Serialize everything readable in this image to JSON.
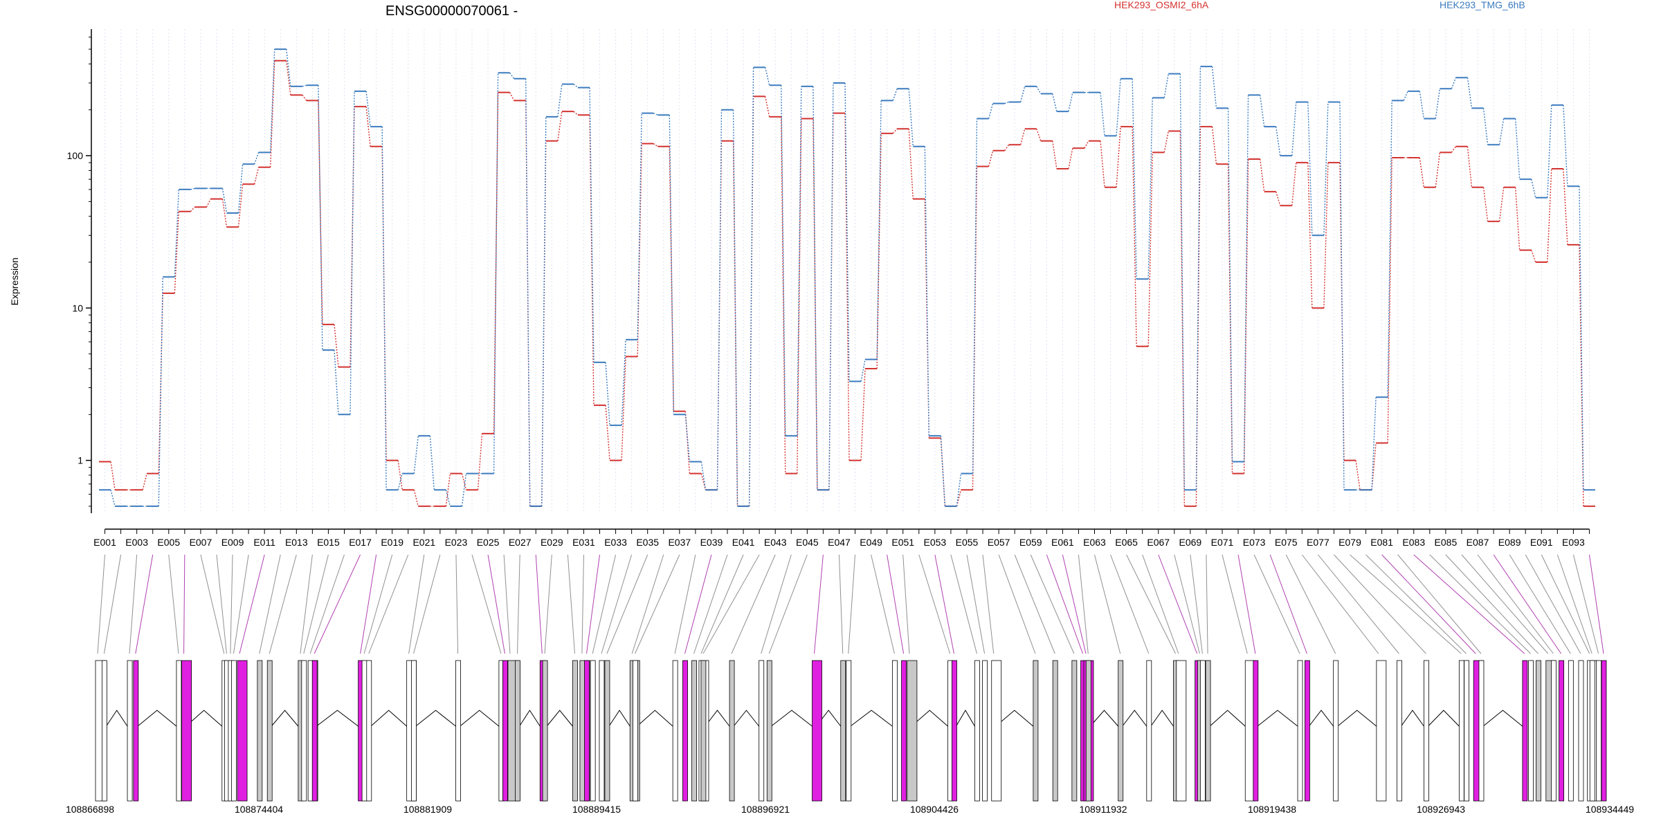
{
  "chart_data": {
    "type": "line",
    "title": "ENSG00000070061 -",
    "ylabel": "Expression",
    "xlabel": "",
    "y_scale": "log",
    "ylim": [
      0.45,
      650
    ],
    "y_ticks": [
      "1",
      "10",
      "100"
    ],
    "grid": "vertical dotted per exon",
    "legend": [
      "HEK293_OSMI2_6hA",
      "HEK293_TMG_6hB"
    ],
    "colors": {
      "HEK293_OSMI2_6hA": "#d3322f",
      "HEK293_TMG_6hB": "#3b7bbf",
      "exon_gray": "#c8c8c8",
      "exon_magenta": "#e020e0"
    },
    "x": [
      "E001",
      "E002",
      "E003",
      "E004",
      "E005",
      "E006",
      "E007",
      "E008",
      "E009",
      "E010",
      "E011",
      "E012",
      "E013",
      "E014",
      "E015",
      "E016",
      "E017",
      "E018",
      "E019",
      "E020",
      "E021",
      "E022",
      "E023",
      "E024",
      "E025",
      "E026",
      "E027",
      "E028",
      "E029",
      "E030",
      "E031",
      "E032",
      "E033",
      "E034",
      "E035",
      "E036",
      "E037",
      "E038",
      "E039",
      "E040",
      "E041",
      "E042",
      "E043",
      "E044",
      "E045",
      "E046",
      "E047",
      "E048",
      "E049",
      "E050",
      "E051",
      "E052",
      "E053",
      "E054",
      "E055",
      "E056",
      "E057",
      "E058",
      "E059",
      "E060",
      "E061",
      "E062",
      "E063",
      "E064",
      "E065",
      "E066",
      "E067",
      "E068",
      "E069",
      "E070",
      "E071",
      "E072",
      "E073",
      "E074",
      "E075",
      "E076",
      "E077",
      "E078",
      "E079",
      "E080",
      "E081",
      "E082",
      "E083",
      "E084",
      "E085",
      "E086",
      "E087",
      "E088",
      "E089",
      "E090",
      "E091",
      "E092",
      "E093",
      "E094"
    ],
    "tick_labels": [
      "E001",
      "E003",
      "E005",
      "E007",
      "E009",
      "E011",
      "E013",
      "E015",
      "E017",
      "E019",
      "E021",
      "E023",
      "E025",
      "E027",
      "E029",
      "E031",
      "E033",
      "E035",
      "E037",
      "E039",
      "E041",
      "E043",
      "E045",
      "E047",
      "E049",
      "E051",
      "E053",
      "E055",
      "E057",
      "E059",
      "E061",
      "E063",
      "E065",
      "E067",
      "E069",
      "E071",
      "E073",
      "E075",
      "E077",
      "E079",
      "E081",
      "E083",
      "E085",
      "E087",
      "E089",
      "E091",
      "E093"
    ],
    "series": [
      {
        "name": "HEK293_OSMI2_6hA",
        "values": [
          0.98,
          0.64,
          0.64,
          0.82,
          12.5,
          43,
          46,
          52,
          34,
          65,
          84,
          420,
          250,
          230,
          7.8,
          4.1,
          210,
          115,
          1.0,
          0.64,
          0.5,
          0.5,
          0.82,
          0.64,
          1.5,
          260,
          230,
          0.5,
          125,
          195,
          185,
          2.3,
          1.0,
          4.8,
          120,
          115,
          2.1,
          0.82,
          0.64,
          125,
          0.5,
          245,
          180,
          0.82,
          175,
          0.64,
          190,
          1.0,
          4.0,
          140,
          150,
          52,
          1.4,
          0.5,
          0.64,
          85,
          108,
          118,
          150,
          125,
          82,
          112,
          125,
          62,
          155,
          5.6,
          105,
          145,
          0.5,
          155,
          88,
          0.82,
          95,
          58,
          47,
          90,
          10,
          90,
          1.0,
          0.64,
          1.3,
          97,
          97,
          62,
          105,
          115,
          62,
          37,
          62,
          24,
          20,
          82,
          26,
          0.5
        ]
      },
      {
        "name": "HEK293_TMG_6hB",
        "values": [
          0.64,
          0.5,
          0.5,
          0.5,
          16,
          60,
          61,
          61,
          42,
          88,
          105,
          500,
          285,
          290,
          5.3,
          2.0,
          265,
          155,
          0.64,
          0.82,
          1.45,
          0.64,
          0.5,
          0.82,
          0.82,
          350,
          320,
          0.5,
          180,
          295,
          280,
          4.4,
          1.7,
          6.2,
          190,
          185,
          2.0,
          0.98,
          0.64,
          200,
          0.5,
          380,
          290,
          1.45,
          285,
          0.64,
          300,
          3.3,
          4.6,
          230,
          275,
          115,
          1.45,
          0.5,
          0.82,
          175,
          220,
          225,
          285,
          255,
          195,
          260,
          260,
          135,
          320,
          15.5,
          240,
          345,
          0.64,
          385,
          205,
          0.98,
          250,
          155,
          100,
          225,
          30,
          225,
          0.64,
          0.64,
          2.6,
          230,
          265,
          175,
          275,
          325,
          205,
          118,
          175,
          70,
          53,
          215,
          63,
          0.64
        ]
      }
    ],
    "genomic_axis_labels": [
      "108866898",
      "108874404",
      "108881909",
      "108889415",
      "108896921",
      "108904426",
      "108911932",
      "108919438",
      "108926943",
      "108934449"
    ]
  }
}
